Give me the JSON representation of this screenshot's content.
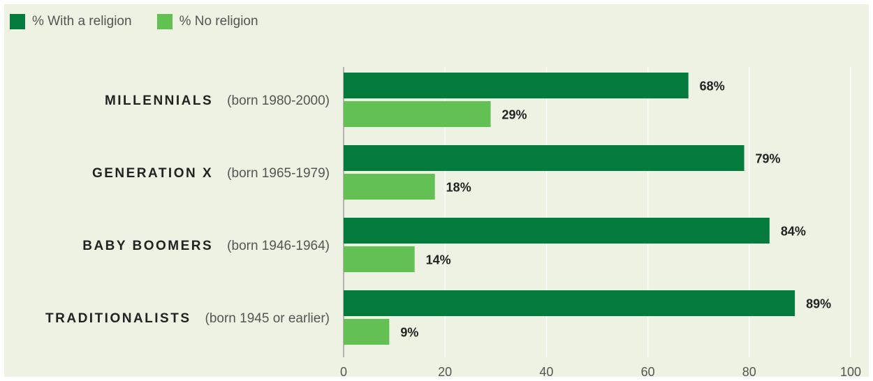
{
  "chart_data": {
    "type": "bar",
    "orientation": "horizontal",
    "categories": [
      "MILLENNIALS",
      "GENERATION X",
      "BABY BOOMERS",
      "TRADITIONALISTS"
    ],
    "category_subtitles": [
      "(born 1980-2000)",
      "(born 1965-1979)",
      "(born 1946-1964)",
      "(born 1945 or earlier)"
    ],
    "series": [
      {
        "name": "% With a religion",
        "color": "#047a3d",
        "values": [
          68,
          79,
          84,
          89
        ],
        "labels": [
          "68%",
          "79%",
          "84%",
          "89%"
        ]
      },
      {
        "name": "% No religion",
        "color": "#62c152",
        "values": [
          29,
          18,
          14,
          9
        ],
        "labels": [
          "29%",
          "18%",
          "14%",
          "9%"
        ]
      }
    ],
    "xlim": [
      0,
      100
    ],
    "xticks": [
      0,
      20,
      40,
      60,
      80,
      100
    ],
    "grid": true,
    "legend_position": "top-left",
    "background": "#edf2e3"
  }
}
